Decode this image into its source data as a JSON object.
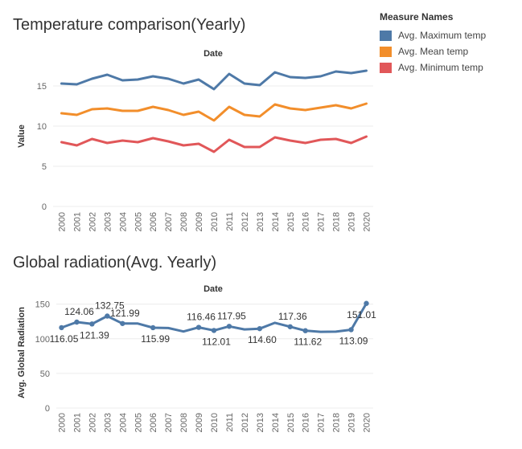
{
  "legend": {
    "title": "Measure Names",
    "items": [
      {
        "label": "Avg. Maximum temp",
        "color": "#4e79a7"
      },
      {
        "label": "Avg. Mean temp",
        "color": "#f28e2b"
      },
      {
        "label": "Avg. Minimum temp",
        "color": "#e15759"
      }
    ]
  },
  "chart_data": [
    {
      "type": "line",
      "title": "Temperature comparison(Yearly)",
      "xlabel": "Date",
      "ylabel": "Value",
      "ylim": [
        0,
        17.5
      ],
      "yticks": [
        0,
        5,
        10,
        15
      ],
      "grid": true,
      "legend_position": "top-right",
      "x": [
        "2000",
        "2001",
        "2002",
        "2003",
        "2004",
        "2005",
        "2006",
        "2007",
        "2008",
        "2009",
        "2010",
        "2011",
        "2012",
        "2013",
        "2014",
        "2015",
        "2016",
        "2017",
        "2018",
        "2019",
        "2020"
      ],
      "series": [
        {
          "name": "Avg. Maximum temp",
          "color": "#4e79a7",
          "values": [
            15.3,
            15.2,
            15.9,
            16.4,
            15.7,
            15.8,
            16.2,
            15.9,
            15.3,
            15.8,
            14.6,
            16.5,
            15.3,
            15.1,
            16.7,
            16.1,
            16.0,
            16.2,
            16.8,
            16.6,
            16.9
          ]
        },
        {
          "name": "Avg. Mean temp",
          "color": "#f28e2b",
          "values": [
            11.6,
            11.4,
            12.1,
            12.2,
            11.9,
            11.9,
            12.4,
            12.0,
            11.4,
            11.8,
            10.7,
            12.4,
            11.4,
            11.2,
            12.7,
            12.2,
            12.0,
            12.3,
            12.6,
            12.2,
            12.8
          ]
        },
        {
          "name": "Avg. Minimum temp",
          "color": "#e15759",
          "values": [
            8.0,
            7.6,
            8.4,
            7.9,
            8.2,
            8.0,
            8.5,
            8.1,
            7.6,
            7.8,
            6.8,
            8.3,
            7.4,
            7.4,
            8.6,
            8.2,
            7.9,
            8.3,
            8.4,
            7.9,
            8.7
          ]
        }
      ]
    },
    {
      "type": "line",
      "title": "Global radiation(Avg. Yearly)",
      "xlabel": "Date",
      "ylabel": "Avg. Global Radiation",
      "ylim": [
        0,
        160
      ],
      "yticks": [
        0,
        50,
        100,
        150
      ],
      "grid": true,
      "x": [
        "2000",
        "2001",
        "2002",
        "2003",
        "2004",
        "2005",
        "2006",
        "2007",
        "2008",
        "2009",
        "2010",
        "2011",
        "2012",
        "2013",
        "2014",
        "2015",
        "2016",
        "2017",
        "2018",
        "2019",
        "2020"
      ],
      "series": [
        {
          "color": "#4e79a7",
          "values": [
            116.05,
            124.06,
            121.39,
            132.75,
            121.99,
            122.0,
            115.99,
            115.5,
            110.5,
            116.46,
            112.01,
            117.95,
            113.5,
            114.6,
            123.0,
            117.36,
            111.62,
            110.0,
            110.3,
            113.09,
            151.01
          ]
        }
      ],
      "data_labels": [
        {
          "index": 0,
          "text": "116.05",
          "pos": "below"
        },
        {
          "index": 1,
          "text": "124.06",
          "pos": "above"
        },
        {
          "index": 2,
          "text": "121.39",
          "pos": "below"
        },
        {
          "index": 3,
          "text": "132.75",
          "pos": "above"
        },
        {
          "index": 4,
          "text": "121.99",
          "pos": "above"
        },
        {
          "index": 6,
          "text": "115.99",
          "pos": "below"
        },
        {
          "index": 9,
          "text": "116.46",
          "pos": "above"
        },
        {
          "index": 10,
          "text": "112.01",
          "pos": "below"
        },
        {
          "index": 11,
          "text": "117.95",
          "pos": "above"
        },
        {
          "index": 13,
          "text": "114.60",
          "pos": "below"
        },
        {
          "index": 15,
          "text": "117.36",
          "pos": "above"
        },
        {
          "index": 16,
          "text": "111.62",
          "pos": "below"
        },
        {
          "index": 19,
          "text": "113.09",
          "pos": "below"
        },
        {
          "index": 20,
          "text": "151.01",
          "pos": "below"
        }
      ],
      "marked_points": [
        0,
        1,
        2,
        3,
        4,
        6,
        9,
        10,
        11,
        13,
        15,
        16,
        19,
        20
      ]
    }
  ]
}
